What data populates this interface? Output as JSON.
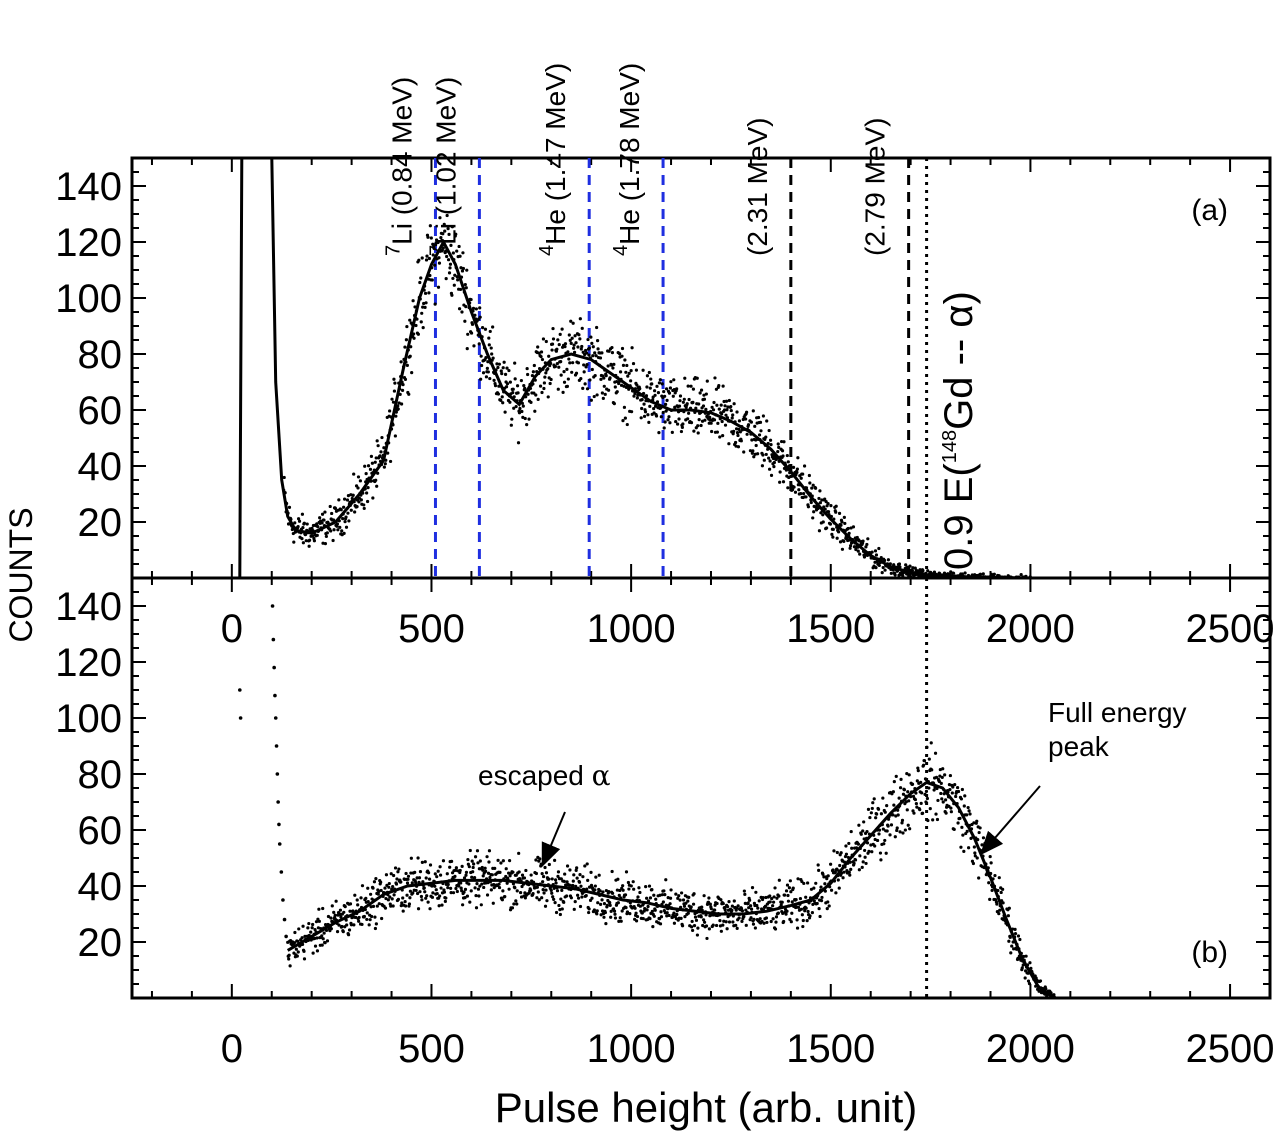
{
  "chart_data": [
    {
      "panel": "a",
      "type": "scatter",
      "ylabel": "COUNTS",
      "xlim": [
        -250,
        2600
      ],
      "ylim": [
        0,
        150
      ],
      "y_ticks": [
        20,
        40,
        60,
        80,
        100,
        120,
        140
      ],
      "x_ticks": [
        0,
        500,
        1000,
        1500,
        2000,
        2500
      ],
      "panel_label": "(a)",
      "vertical_lines": [
        {
          "x": 510,
          "color": "#1f2fe0",
          "style": "dashed",
          "label_main": "Li (0.84 MeV)",
          "label_sup": "7"
        },
        {
          "x": 620,
          "color": "#1f2fe0",
          "style": "dashed",
          "label_main": "Li (1.02 MeV)",
          "label_sup": "7"
        },
        {
          "x": 895,
          "color": "#1f2fe0",
          "style": "dashed",
          "label_main": "He (1.47 MeV)",
          "label_sup": "4"
        },
        {
          "x": 1080,
          "color": "#1f2fe0",
          "style": "dashed",
          "label_main": "He (1.78 MeV)",
          "label_sup": "4"
        },
        {
          "x": 1400,
          "color": "#000000",
          "style": "dashed",
          "label_main": "(2.31 MeV)",
          "label_sup": ""
        },
        {
          "x": 1695,
          "color": "#000000",
          "style": "dashed",
          "label_main": "(2.79 MeV)",
          "label_sup": ""
        },
        {
          "x": 1740,
          "color": "#000000",
          "style": "dotted",
          "label_main": "",
          "label_sup": ""
        }
      ],
      "big_annotation": {
        "pre": "0.9 E(",
        "sup": "148",
        "post": "Gd -- α)"
      },
      "series_curve": {
        "x": [
          20,
          25,
          35,
          60,
          90,
          100,
          110,
          125,
          140,
          160,
          200,
          260,
          320,
          380,
          430,
          470,
          500,
          530,
          560,
          600,
          640,
          680,
          720,
          760,
          800,
          850,
          900,
          950,
          1000,
          1050,
          1100,
          1150,
          1200,
          1250,
          1300,
          1350,
          1400,
          1450,
          1500,
          1550,
          1600,
          1650,
          1700,
          1750,
          1800,
          1900,
          2000,
          2100,
          2200,
          2300,
          2400,
          2600
        ],
        "y": [
          0,
          150,
          150,
          150,
          150,
          150,
          70,
          35,
          22,
          17,
          16,
          20,
          30,
          42,
          75,
          100,
          112,
          120,
          112,
          95,
          80,
          67,
          62,
          72,
          78,
          80,
          78,
          73,
          68,
          63,
          60,
          60,
          59,
          56,
          52,
          46,
          38,
          29,
          21,
          14,
          8,
          4,
          2,
          1,
          0.5,
          0.2,
          0,
          0,
          0,
          0,
          0,
          0
        ]
      }
    },
    {
      "panel": "b",
      "type": "scatter",
      "xlabel": "Pulse height (arb. unit)",
      "xlim": [
        -250,
        2600
      ],
      "ylim": [
        0,
        150
      ],
      "y_ticks": [
        20,
        40,
        60,
        80,
        100,
        120,
        140
      ],
      "x_ticks": [
        0,
        500,
        1000,
        1500,
        2000,
        2500
      ],
      "panel_label": "(b)",
      "vertical_lines": [
        {
          "x": 1740,
          "color": "#000000",
          "style": "dotted"
        }
      ],
      "annotations": [
        {
          "text_main": "escaped ",
          "text_greek": "α",
          "arrow_to": [
            780,
            48
          ]
        },
        {
          "text_lines": [
            "Full energy",
            "peak"
          ],
          "arrow_to": [
            1880,
            52
          ]
        }
      ],
      "series_curve": {
        "x": [
          140,
          200,
          260,
          320,
          380,
          440,
          500,
          560,
          620,
          680,
          740,
          800,
          860,
          920,
          980,
          1040,
          1100,
          1160,
          1220,
          1280,
          1340,
          1400,
          1450,
          1500,
          1550,
          1600,
          1650,
          1700,
          1740,
          1780,
          1820,
          1860,
          1900,
          1940,
          1980,
          2020,
          2060
        ],
        "y": [
          17,
          22,
          27,
          31,
          37,
          40,
          41,
          42,
          42,
          42,
          41,
          40,
          39,
          37,
          35,
          34,
          32,
          31,
          30,
          30,
          31,
          33,
          35,
          41,
          50,
          58,
          66,
          73,
          77,
          75,
          68,
          57,
          43,
          28,
          14,
          4,
          0
        ]
      },
      "series_points_early": {
        "x": [
          20,
          22,
          100,
          102,
          104,
          106,
          108,
          110,
          112,
          114,
          116,
          118,
          120,
          124,
          128,
          132,
          136
        ],
        "y": [
          110,
          100,
          150,
          140,
          128,
          118,
          108,
          100,
          90,
          80,
          70,
          62,
          55,
          45,
          35,
          28,
          22
        ]
      }
    }
  ]
}
